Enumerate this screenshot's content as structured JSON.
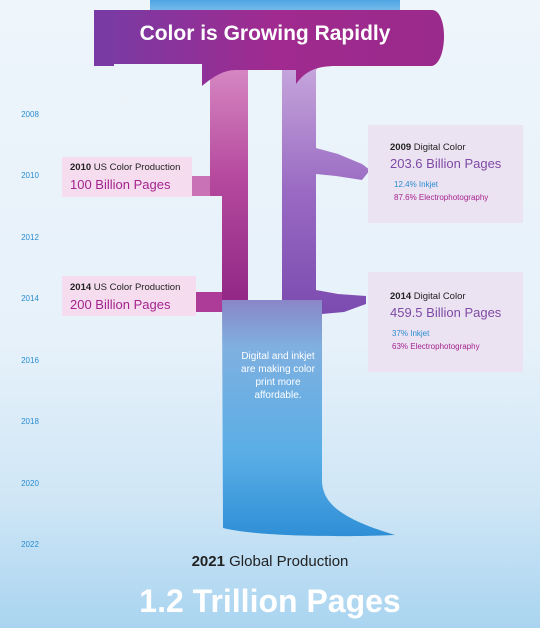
{
  "chart_data": {
    "type": "sankey",
    "title": "Color is Growing Rapidly",
    "years": [
      "2008",
      "2010",
      "2012",
      "2014",
      "2016",
      "2018",
      "2020",
      "2022"
    ],
    "left_callouts": [
      {
        "year": "2010",
        "label": "US Color Production",
        "value": "100 Billion Pages",
        "value_num": 100
      },
      {
        "year": "2014",
        "label": "US Color Production",
        "value": "200 Billion Pages",
        "value_num": 200
      }
    ],
    "right_callouts": [
      {
        "year": "2009",
        "label": "Digital Color",
        "value": "203.6 Billion Pages",
        "value_num": 203.6,
        "inkjet": "12.4% Inkjet",
        "electro": "87.6% Electrophotography"
      },
      {
        "year": "2014",
        "label": "Digital Color",
        "value": "459.5 Billion Pages",
        "value_num": 459.5,
        "inkjet": "37% Inkjet",
        "electro": "63% Electrophotography"
      }
    ],
    "note": "Digital and inkjet are making color print more affordable.",
    "footer": {
      "year": "2021",
      "label": "Global Production",
      "total": "1.2 Trillion Pages",
      "total_num": 1200
    }
  },
  "colors": {
    "magenta": "#a4238e",
    "purple": "#7e4aa5",
    "blue": "#2a8ccf"
  }
}
